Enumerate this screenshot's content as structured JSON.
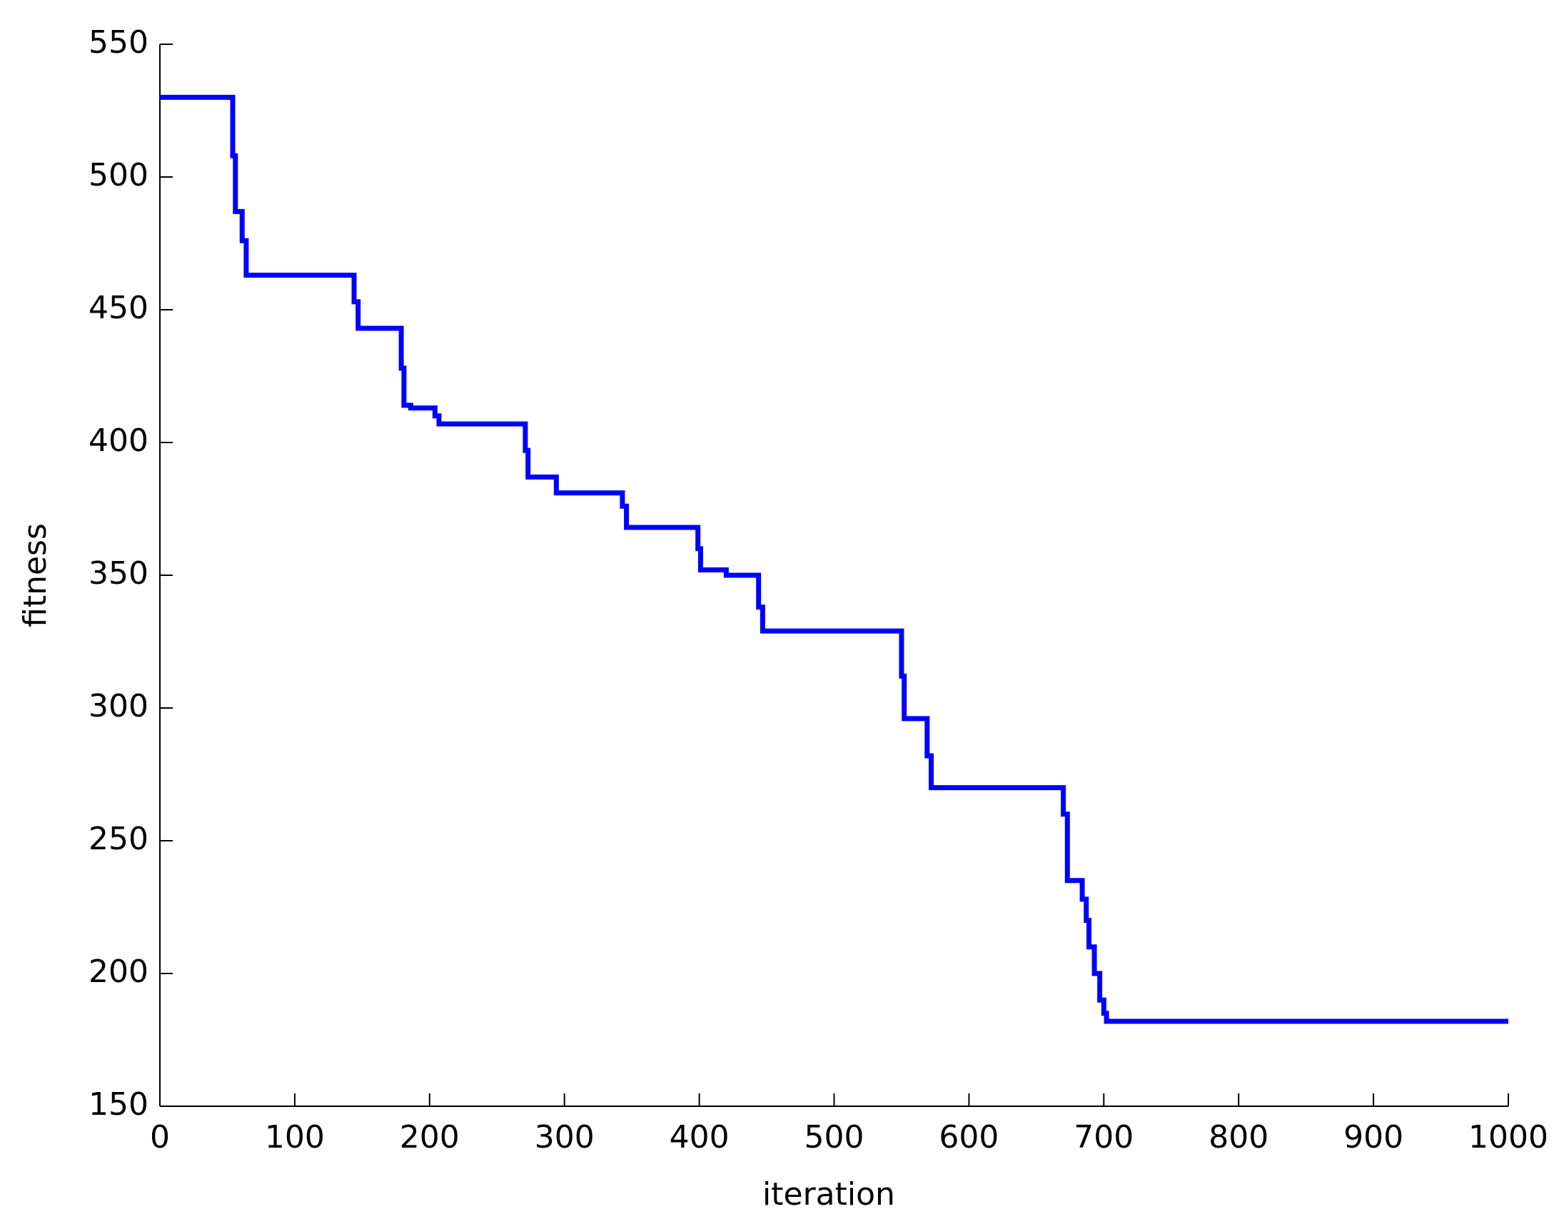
{
  "chart_data": {
    "type": "line",
    "xlabel": "iteration",
    "ylabel": "fitness",
    "x": [
      0,
      54,
      54,
      56,
      56,
      61,
      61,
      64,
      64,
      144,
      144,
      147,
      147,
      179,
      179,
      181,
      181,
      186,
      186,
      204,
      204,
      207,
      207,
      271,
      271,
      273,
      273,
      294,
      294,
      343,
      343,
      346,
      346,
      399,
      399,
      401,
      401,
      420,
      420,
      444,
      444,
      447,
      447,
      550,
      550,
      552,
      552,
      569,
      569,
      572,
      572,
      670,
      670,
      673,
      673,
      684,
      684,
      687,
      687,
      689,
      689,
      693,
      693,
      697,
      697,
      700,
      700,
      702,
      702,
      1000
    ],
    "series": [
      {
        "color": "#0000ff",
        "values": [
          530,
          530,
          508,
          508,
          487,
          487,
          476,
          476,
          463,
          463,
          453,
          453,
          443,
          443,
          428,
          428,
          414,
          414,
          413,
          413,
          410,
          410,
          407,
          407,
          397,
          397,
          387,
          387,
          381,
          381,
          376,
          376,
          368,
          368,
          360,
          360,
          352,
          352,
          350,
          350,
          338,
          338,
          329,
          329,
          312,
          312,
          296,
          296,
          282,
          282,
          270,
          270,
          260,
          260,
          235,
          235,
          228,
          228,
          220,
          220,
          210,
          210,
          200,
          200,
          190,
          190,
          185,
          185,
          182,
          182
        ]
      }
    ],
    "xlim": [
      0,
      1000
    ],
    "xticks": [
      0,
      100,
      200,
      300,
      400,
      500,
      600,
      700,
      800,
      900,
      1000
    ],
    "ylim": [
      150,
      550
    ],
    "yticks": [
      150,
      200,
      250,
      300,
      350,
      400,
      450,
      500,
      550
    ],
    "grid": false
  }
}
